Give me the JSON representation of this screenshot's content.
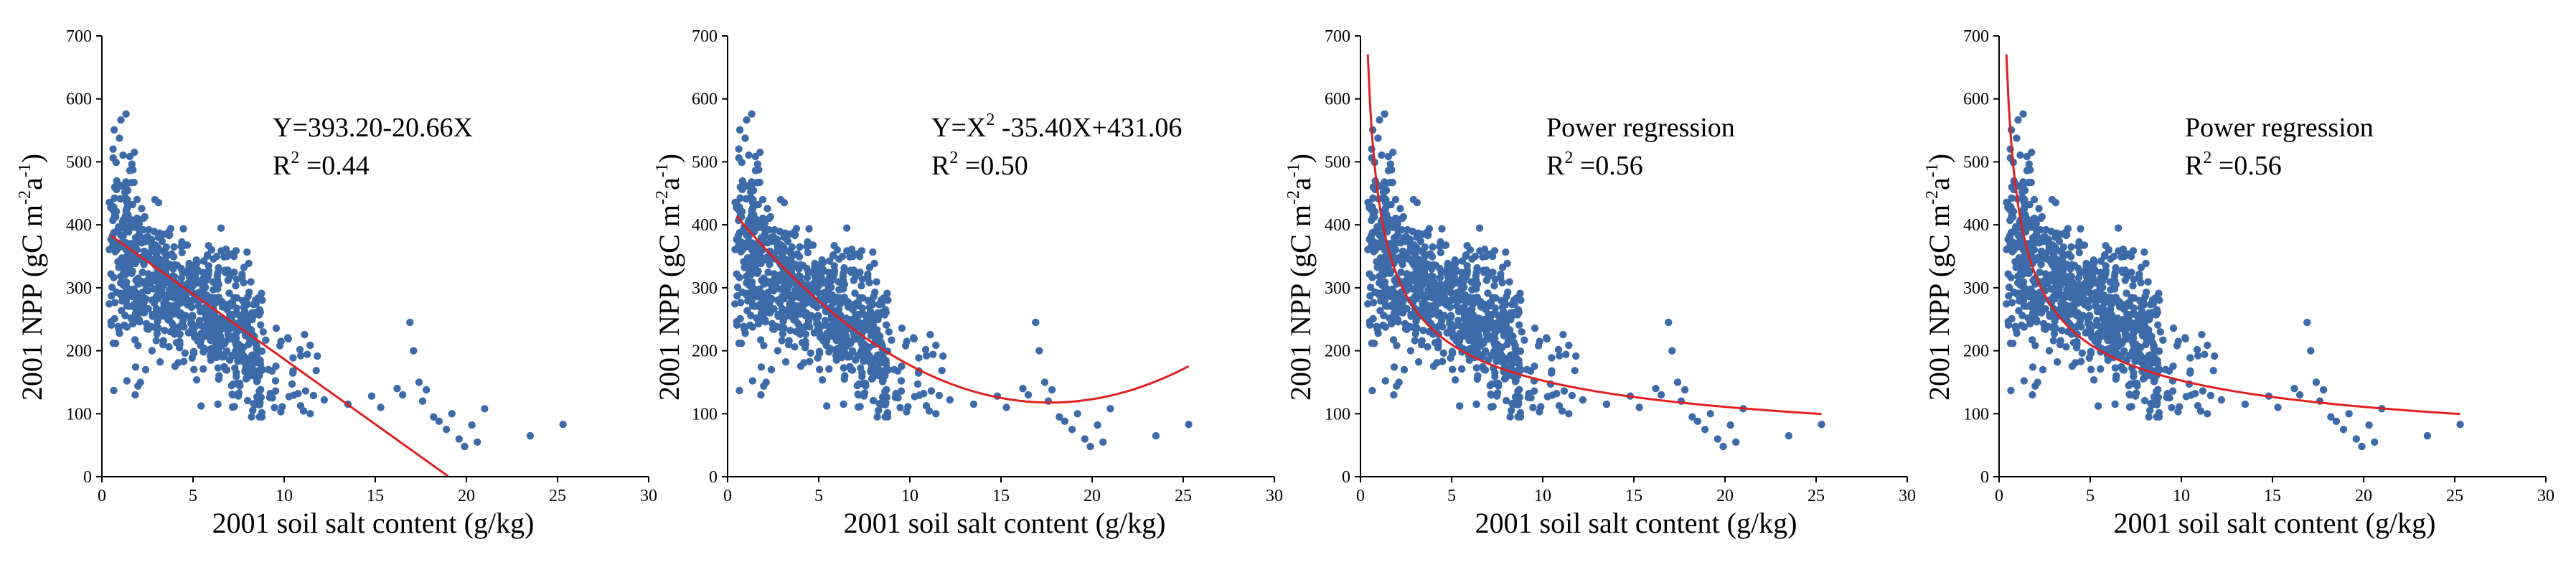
{
  "chart_data": [
    {
      "type": "scatter",
      "xlabel": "2001 soil salt content (g/kg)",
      "ylabel_main": "2001 NPP (gC m",
      "ylabel_sup1": "-2",
      "ylabel_mid": "a",
      "ylabel_sup2": "-1",
      "ylabel_end": ")",
      "xlim": [
        0,
        30
      ],
      "ylim": [
        0,
        700
      ],
      "xticks": [
        "0",
        "5",
        "10",
        "15",
        "20",
        "25",
        "30"
      ],
      "yticks": [
        "0",
        "100",
        "200",
        "300",
        "400",
        "500",
        "600",
        "700"
      ],
      "equation": "Y=393.20-20.66X",
      "r2_prefix": "R",
      "r2_sup": "2",
      "r2_value": " =0.44",
      "fit": {
        "kind": "linear",
        "a": 393.2,
        "b": -20.66,
        "x_range": [
          0.5,
          19.0
        ]
      },
      "point_color": "#3d6aa8",
      "fit_color": "#e02020"
    },
    {
      "type": "scatter",
      "xlabel": "2001 soil salt content (g/kg)",
      "ylabel_main": "2001 NPP (gC m",
      "ylabel_sup1": "-2",
      "ylabel_mid": "a",
      "ylabel_sup2": "-1",
      "ylabel_end": ")",
      "xlim": [
        0,
        30
      ],
      "ylim": [
        0,
        700
      ],
      "xticks": [
        "0",
        "5",
        "10",
        "15",
        "20",
        "25",
        "30"
      ],
      "yticks": [
        "0",
        "100",
        "200",
        "300",
        "400",
        "500",
        "600",
        "700"
      ],
      "equation_pre": "Y=X",
      "equation_sup": "2",
      "equation_post": " -35.40X+431.06",
      "r2_prefix": "R",
      "r2_sup": "2",
      "r2_value": " =0.50",
      "fit": {
        "kind": "quadratic",
        "a": 431.06,
        "b": -35.4,
        "c": 1.0,
        "x_range": [
          0.5,
          25.3
        ]
      },
      "point_color": "#3d6aa8",
      "fit_color": "#e02020"
    },
    {
      "type": "scatter",
      "xlabel": "2001 soil salt content (g/kg)",
      "ylabel_main": "2001 NPP (gC m",
      "ylabel_sup1": "-2",
      "ylabel_mid": "a",
      "ylabel_sup2": "-1",
      "ylabel_end": ")",
      "xlim": [
        0,
        30
      ],
      "ylim": [
        0,
        700
      ],
      "xticks": [
        "0",
        "5",
        "10",
        "15",
        "20",
        "25",
        "30"
      ],
      "yticks": [
        "0",
        "100",
        "200",
        "300",
        "400",
        "500",
        "600",
        "700"
      ],
      "equation": "Power regression",
      "r2_prefix": "R",
      "r2_sup": "2",
      "r2_value": " =0.56",
      "fit": {
        "kind": "power",
        "a": 440,
        "b": -0.46,
        "x_range": [
          0.4,
          25.3
        ]
      },
      "point_color": "#3d6aa8",
      "fit_color": "#e02020"
    },
    {
      "type": "scatter",
      "xlabel": "2001 soil salt content (g/kg)",
      "ylabel_main": "2001 NPP (gC m",
      "ylabel_sup1": "-2",
      "ylabel_mid": "a",
      "ylabel_sup2": "-1",
      "ylabel_end": ")",
      "xlim": [
        0,
        30
      ],
      "ylim": [
        0,
        700
      ],
      "xticks": [
        "0",
        "5",
        "10",
        "15",
        "20",
        "25",
        "30"
      ],
      "yticks": [
        "0",
        "100",
        "200",
        "300",
        "400",
        "500",
        "600",
        "700"
      ],
      "equation": "Power regression",
      "r2_prefix": "R",
      "r2_sup": "2",
      "r2_value": " =0.56",
      "fit": {
        "kind": "power",
        "a": 440,
        "b": -0.46,
        "x_range": [
          0.4,
          25.3
        ]
      },
      "point_color": "#3d6aa8",
      "fit_color": "#e02020"
    }
  ]
}
